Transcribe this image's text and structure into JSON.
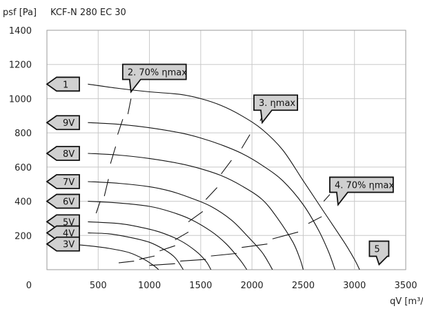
{
  "header": {
    "y_unit": "psf [Pa]",
    "title": "KCF-N 280 EC 30",
    "x_unit": "qV [m³/"
  },
  "chart_data": {
    "type": "line",
    "title": "KCF-N 280 EC 30",
    "xlabel": "qV [m³/",
    "ylabel": "psf [Pa]",
    "xlim": [
      0,
      3500
    ],
    "ylim": [
      0,
      1400
    ],
    "x_ticks": [
      "500",
      "1000",
      "1500",
      "2000",
      "2500",
      "3000",
      "3500"
    ],
    "y_ticks": [
      "200",
      "400",
      "600",
      "800",
      "1000",
      "1200",
      "1400"
    ],
    "origin_label": "0",
    "grid": true,
    "series": [
      {
        "name": "1",
        "points": [
          [
            400,
            1085
          ],
          [
            700,
            1060
          ],
          [
            1000,
            1040
          ],
          [
            1300,
            1025
          ],
          [
            1500,
            1000
          ],
          [
            1700,
            960
          ],
          [
            1900,
            900
          ],
          [
            2100,
            820
          ],
          [
            2300,
            700
          ],
          [
            2500,
            520
          ],
          [
            2700,
            340
          ],
          [
            2900,
            160
          ],
          [
            3000,
            60
          ],
          [
            3050,
            0
          ]
        ]
      },
      {
        "name": "9V",
        "points": [
          [
            400,
            860
          ],
          [
            700,
            850
          ],
          [
            1000,
            830
          ],
          [
            1300,
            800
          ],
          [
            1500,
            770
          ],
          [
            1700,
            730
          ],
          [
            1900,
            680
          ],
          [
            2100,
            610
          ],
          [
            2300,
            520
          ],
          [
            2500,
            380
          ],
          [
            2650,
            230
          ],
          [
            2750,
            100
          ],
          [
            2810,
            0
          ]
        ]
      },
      {
        "name": "8V",
        "points": [
          [
            400,
            680
          ],
          [
            700,
            670
          ],
          [
            1000,
            650
          ],
          [
            1300,
            620
          ],
          [
            1500,
            590
          ],
          [
            1700,
            550
          ],
          [
            1900,
            490
          ],
          [
            2100,
            410
          ],
          [
            2250,
            300
          ],
          [
            2400,
            160
          ],
          [
            2470,
            60
          ],
          [
            2500,
            0
          ]
        ]
      },
      {
        "name": "7V",
        "points": [
          [
            400,
            515
          ],
          [
            700,
            505
          ],
          [
            1000,
            485
          ],
          [
            1200,
            460
          ],
          [
            1400,
            420
          ],
          [
            1600,
            370
          ],
          [
            1800,
            290
          ],
          [
            1950,
            200
          ],
          [
            2100,
            100
          ],
          [
            2200,
            0
          ]
        ]
      },
      {
        "name": "6V",
        "points": [
          [
            400,
            400
          ],
          [
            700,
            390
          ],
          [
            1000,
            370
          ],
          [
            1200,
            340
          ],
          [
            1400,
            295
          ],
          [
            1600,
            225
          ],
          [
            1750,
            150
          ],
          [
            1880,
            60
          ],
          [
            1950,
            0
          ]
        ]
      },
      {
        "name": "5V",
        "points": [
          [
            400,
            280
          ],
          [
            700,
            270
          ],
          [
            900,
            250
          ],
          [
            1100,
            220
          ],
          [
            1300,
            170
          ],
          [
            1450,
            110
          ],
          [
            1550,
            50
          ],
          [
            1600,
            0
          ]
        ]
      },
      {
        "name": "4V",
        "points": [
          [
            400,
            215
          ],
          [
            600,
            210
          ],
          [
            800,
            190
          ],
          [
            1000,
            160
          ],
          [
            1150,
            115
          ],
          [
            1250,
            70
          ],
          [
            1330,
            0
          ]
        ]
      },
      {
        "name": "3V",
        "points": [
          [
            200,
            150
          ],
          [
            400,
            140
          ],
          [
            600,
            125
          ],
          [
            800,
            100
          ],
          [
            950,
            60
          ],
          [
            1050,
            20
          ],
          [
            1090,
            0
          ]
        ]
      }
    ],
    "efficiency_lines": [
      {
        "name": "2. 70% ηmax",
        "segments": [
          [
            [
              790,
              910
            ],
            [
              820,
              1000
            ]
          ],
          [
            [
              690,
              790
            ],
            [
              740,
              880
            ]
          ],
          [
            [
              620,
              620
            ],
            [
              670,
              720
            ]
          ],
          [
            [
              560,
              430
            ],
            [
              600,
              530
            ]
          ],
          [
            [
              480,
              330
            ],
            [
              520,
              400
            ]
          ]
        ]
      },
      {
        "name": "3. ηmax",
        "segments": [
          [
            [
              2080,
              870
            ],
            [
              2130,
              935
            ]
          ],
          [
            [
              1900,
              710
            ],
            [
              1980,
              790
            ]
          ],
          [
            [
              1700,
              560
            ],
            [
              1800,
              640
            ]
          ],
          [
            [
              1550,
              410
            ],
            [
              1660,
              480
            ]
          ],
          [
            [
              1380,
              280
            ],
            [
              1520,
              340
            ]
          ],
          [
            [
              1250,
              175
            ],
            [
              1380,
              220
            ]
          ],
          [
            [
              1100,
              110
            ],
            [
              1250,
              140
            ]
          ],
          [
            [
              900,
              60
            ],
            [
              1050,
              80
            ]
          ],
          [
            [
              700,
              40
            ],
            [
              850,
              50
            ]
          ]
        ]
      },
      {
        "name": "4. 70% ηmax",
        "segments": [
          [
            [
              2700,
              400
            ],
            [
              2760,
              440
            ]
          ],
          [
            [
              2550,
              270
            ],
            [
              2680,
              310
            ]
          ],
          [
            [
              2200,
              180
            ],
            [
              2450,
              220
            ]
          ],
          [
            [
              1900,
              130
            ],
            [
              2150,
              150
            ]
          ],
          [
            [
              1600,
              80
            ],
            [
              1850,
              95
            ]
          ],
          [
            [
              1300,
              50
            ],
            [
              1550,
              60
            ]
          ],
          [
            [
              1000,
              25
            ],
            [
              1250,
              35
            ]
          ]
        ]
      }
    ],
    "curve_tags": [
      {
        "label": "1",
        "y": 1085
      },
      {
        "label": "9V",
        "y": 860
      },
      {
        "label": "8V",
        "y": 680
      },
      {
        "label": "7V",
        "y": 515
      },
      {
        "label": "6V",
        "y": 400
      },
      {
        "label": "5V",
        "y": 280
      },
      {
        "label": "4V",
        "y": 215
      },
      {
        "label": "3V",
        "y": 150
      }
    ],
    "callouts": [
      {
        "label": "2. 70% ηmax",
        "point": [
          820,
          1040
        ]
      },
      {
        "label": "3. ηmax",
        "point": [
          2100,
          860
        ]
      },
      {
        "label": "4. 70% ηmax",
        "point": [
          2840,
          380
        ]
      },
      {
        "label": "5",
        "point": [
          3240,
          30
        ]
      }
    ]
  }
}
